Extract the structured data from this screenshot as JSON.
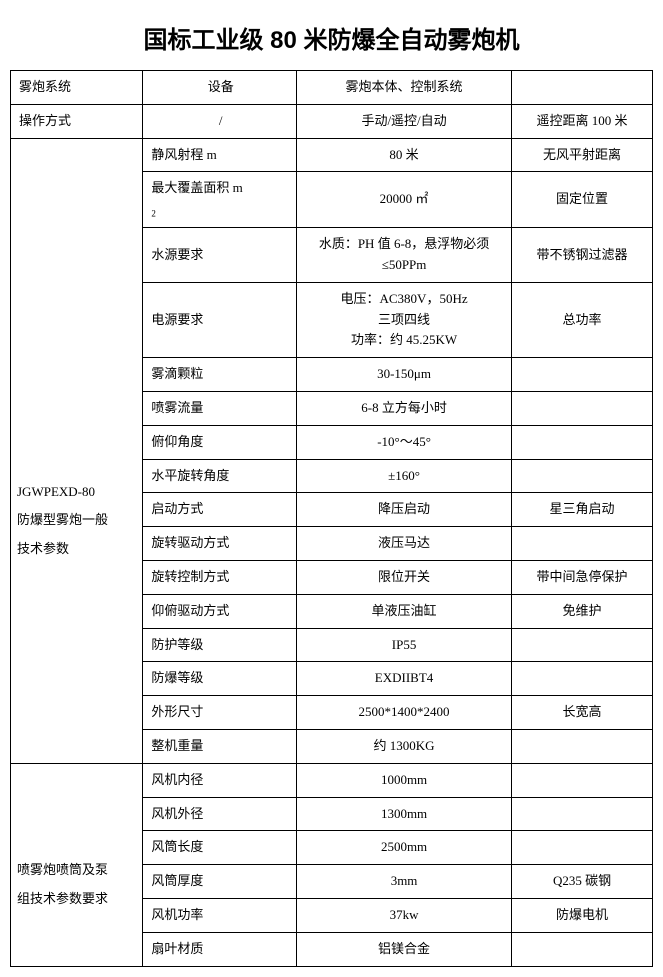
{
  "title": "国标工业级 80 米防爆全自动雾炮机",
  "header_row": {
    "c1": "雾炮系统",
    "c2": "设备",
    "c3": "雾炮本体、控制系统",
    "c4": ""
  },
  "op_row": {
    "c1": "操作方式",
    "c2": "/",
    "c3": "手动/遥控/自动",
    "c4": "遥控距离 100 米"
  },
  "section1_label_line1": "JGWPEXD-80",
  "section1_label_line2": "防爆型雾炮一般",
  "section1_label_line3": "技术参数",
  "s1": [
    {
      "c2a": "静风射程 m",
      "c2b": "",
      "c3": "80 米",
      "c4": "无风平射距离"
    },
    {
      "c2a": "最大覆盖面积 m",
      "c2b": "2",
      "c3": "20000 ㎡",
      "c4": "固定位置"
    },
    {
      "c2a": "水源要求",
      "c2b": "",
      "c3": "水质：PH 值 6-8，悬浮物必须≤50PPm",
      "c4": "带不锈钢过滤器"
    },
    {
      "c2a": "电源要求",
      "c2b": "",
      "c3": "电压：AC380V，50Hz\n三项四线\n功率：约 45.25KW",
      "c4": "总功率"
    },
    {
      "c2a": "雾滴颗粒",
      "c2b": "",
      "c3": "30-150μm",
      "c4": ""
    },
    {
      "c2a": "喷雾流量",
      "c2b": "",
      "c3": "6-8 立方每小时",
      "c4": ""
    },
    {
      "c2a": "俯仰角度",
      "c2b": "",
      "c3": "-10°～45°",
      "c4": ""
    },
    {
      "c2a": "水平旋转角度",
      "c2b": "",
      "c3": "±160°",
      "c4": ""
    },
    {
      "c2a": "启动方式",
      "c2b": "",
      "c3": "降压启动",
      "c4": "星三角启动"
    },
    {
      "c2a": "旋转驱动方式",
      "c2b": "",
      "c3": "液压马达",
      "c4": ""
    },
    {
      "c2a": "旋转控制方式",
      "c2b": "",
      "c3": "限位开关",
      "c4": "带中间急停保护"
    },
    {
      "c2a": "仰俯驱动方式",
      "c2b": "",
      "c3": "单液压油缸",
      "c4": "免维护"
    },
    {
      "c2a": "防护等级",
      "c2b": "",
      "c3": "IP55",
      "c4": ""
    },
    {
      "c2a": "防爆等级",
      "c2b": "",
      "c3": "EXDIIBT4",
      "c4": ""
    },
    {
      "c2a": "外形尺寸",
      "c2b": "",
      "c3": "2500*1400*2400",
      "c4": "长宽高"
    },
    {
      "c2a": "整机重量",
      "c2b": "",
      "c3": "约 1300KG",
      "c4": ""
    }
  ],
  "section2_label_line1": "喷雾炮喷筒及泵",
  "section2_label_line2": "组技术参数要求",
  "s2": [
    {
      "c2": "风机内径",
      "c3": "1000mm",
      "c4": ""
    },
    {
      "c2": "风机外径",
      "c3": "1300mm",
      "c4": ""
    },
    {
      "c2": "风筒长度",
      "c3": "2500mm",
      "c4": ""
    },
    {
      "c2": "风筒厚度",
      "c3": "3mm",
      "c4": "Q235 碳钢"
    },
    {
      "c2": "风机功率",
      "c3": "37kw",
      "c4": "防爆电机"
    },
    {
      "c2": "扇叶材质",
      "c3": "铝镁合金",
      "c4": ""
    }
  ]
}
